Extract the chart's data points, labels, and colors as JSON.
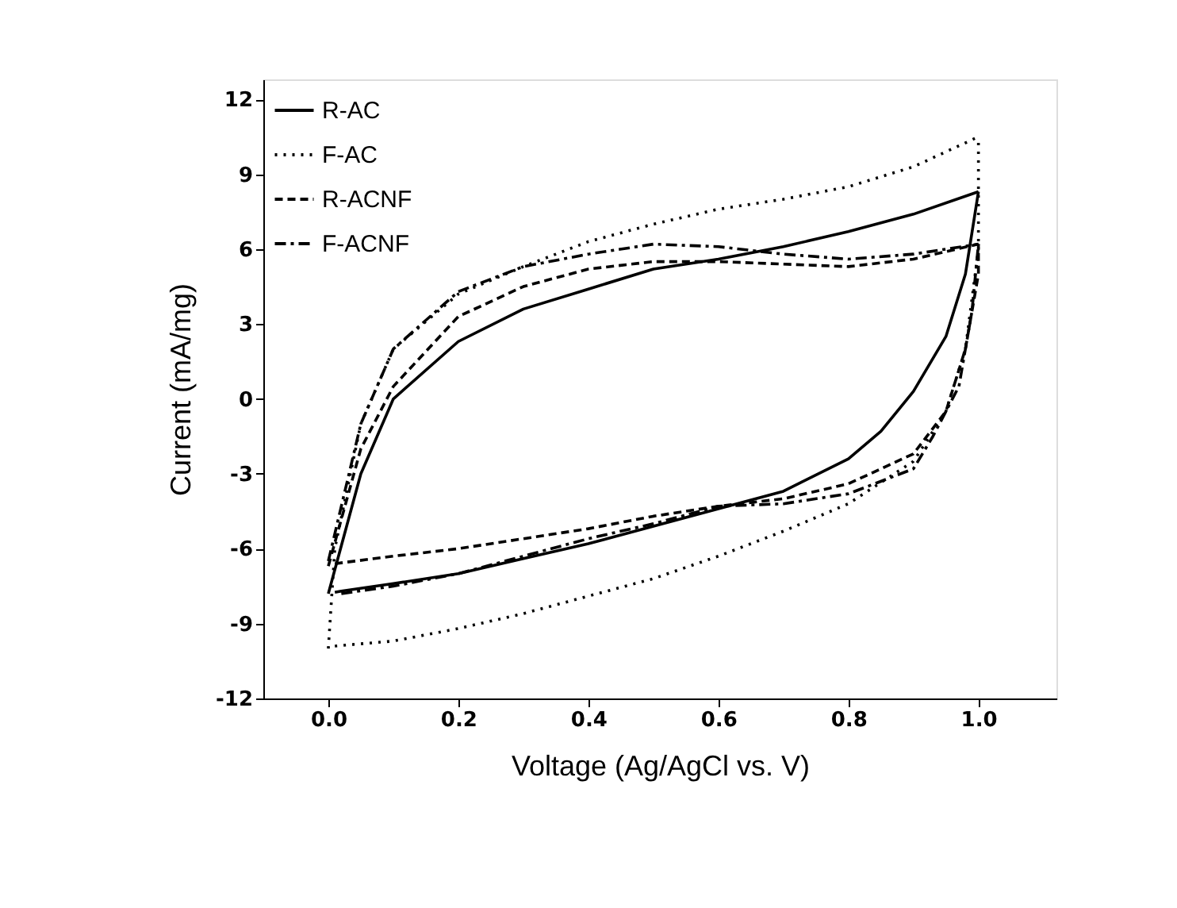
{
  "chart_data": {
    "type": "line",
    "xlabel": "Voltage (Ag/AgCl vs. V)",
    "ylabel": "Current (mA/mg)",
    "xlim": [
      -0.1,
      1.12
    ],
    "ylim": [
      -12,
      12.8
    ],
    "xticks": [
      {
        "value": 0,
        "label": "0.0"
      },
      {
        "value": 0.2,
        "label": "0.2"
      },
      {
        "value": 0.4,
        "label": "0.4"
      },
      {
        "value": 0.6,
        "label": "0.6"
      },
      {
        "value": 0.8,
        "label": "0.8"
      },
      {
        "value": 1,
        "label": "1.0"
      }
    ],
    "yticks": [
      -12,
      -9,
      -6,
      -3,
      0,
      3,
      6,
      9,
      12
    ],
    "legend": "top left",
    "grid": false,
    "marker": "none",
    "series": [
      {
        "name": "R-AC",
        "color": "#000000",
        "line_style": "solid",
        "x": [
          0,
          0.05,
          0.1,
          0.2,
          0.3,
          0.4,
          0.5,
          0.6,
          0.7,
          0.8,
          0.9,
          1.0
        ],
        "values": [
          -7.8,
          -3,
          0,
          2.3,
          3.6,
          4.4,
          5.2,
          5.6,
          6.1,
          6.7,
          7.4,
          8.3
        ]
      },
      {
        "color": "#000000",
        "line_style": "solid",
        "x": [
          0.01,
          0.02,
          0.1,
          0.2,
          0.3,
          0.4,
          0.5,
          0.6,
          0.7,
          0.8,
          0.85,
          0.9,
          0.95,
          0.98,
          1.0
        ],
        "values": [
          -7.75,
          -7.7,
          -7.4,
          -7,
          -6.4,
          -5.8,
          -5.1,
          -4.4,
          -3.7,
          -2.4,
          -1.3,
          0.3,
          2.5,
          5,
          8.3
        ]
      },
      {
        "name": "F-AC",
        "color": "#000000",
        "line_style": "dotted",
        "x": [
          0,
          0.01,
          0.05,
          0.1,
          0.2,
          0.3,
          0.4,
          0.5,
          0.6,
          0.7,
          0.8,
          0.9,
          1.0
        ],
        "values": [
          -10,
          -6,
          -1,
          2,
          4.2,
          5.3,
          6.3,
          7,
          7.6,
          8,
          8.5,
          9.3,
          10.5
        ]
      },
      {
        "color": "#000000",
        "line_style": "dotted",
        "x": [
          0.01,
          0.1,
          0.2,
          0.3,
          0.4,
          0.5,
          0.6,
          0.7,
          0.8,
          0.9,
          0.95,
          0.98,
          1.0,
          1.0
        ],
        "values": [
          -9.9,
          -9.7,
          -9.2,
          -8.6,
          -7.9,
          -7.2,
          -6.3,
          -5.3,
          -4.2,
          -2.5,
          -0.5,
          2,
          6,
          10.5
        ]
      },
      {
        "name": "R-ACNF",
        "color": "#000000",
        "line_style": "dashed",
        "x": [
          0,
          0.05,
          0.1,
          0.2,
          0.3,
          0.4,
          0.5,
          0.6,
          0.7,
          0.8,
          0.9,
          1.0
        ],
        "values": [
          -6.7,
          -2,
          0.5,
          3.3,
          4.5,
          5.2,
          5.5,
          5.5,
          5.4,
          5.3,
          5.6,
          6.2
        ]
      },
      {
        "color": "#000000",
        "line_style": "dashed",
        "x": [
          0.01,
          0.1,
          0.2,
          0.3,
          0.4,
          0.5,
          0.6,
          0.7,
          0.8,
          0.9,
          0.95,
          0.98,
          1.0,
          1.0
        ],
        "values": [
          -6.6,
          -6.3,
          -6,
          -5.6,
          -5.2,
          -4.7,
          -4.3,
          -4,
          -3.4,
          -2.2,
          -0.5,
          2,
          5,
          6.2
        ]
      },
      {
        "name": "F-ACNF",
        "color": "#000000",
        "line_style": "dashdot",
        "x": [
          0,
          0.05,
          0.1,
          0.2,
          0.3,
          0.4,
          0.5,
          0.6,
          0.7,
          0.8,
          0.9,
          1.0
        ],
        "values": [
          -6.5,
          -1,
          2,
          4.3,
          5.3,
          5.8,
          6.2,
          6.1,
          5.8,
          5.6,
          5.8,
          6.2
        ]
      },
      {
        "color": "#000000",
        "line_style": "dashdot",
        "x": [
          0.02,
          0.1,
          0.2,
          0.3,
          0.4,
          0.5,
          0.6,
          0.7,
          0.8,
          0.9,
          0.93,
          0.97,
          0.99,
          1.0
        ],
        "values": [
          -7.8,
          -7.5,
          -7,
          -6.3,
          -5.6,
          -5,
          -4.3,
          -4.2,
          -3.8,
          -2.8,
          -1.5,
          0.5,
          3.5,
          6.2
        ]
      }
    ]
  }
}
